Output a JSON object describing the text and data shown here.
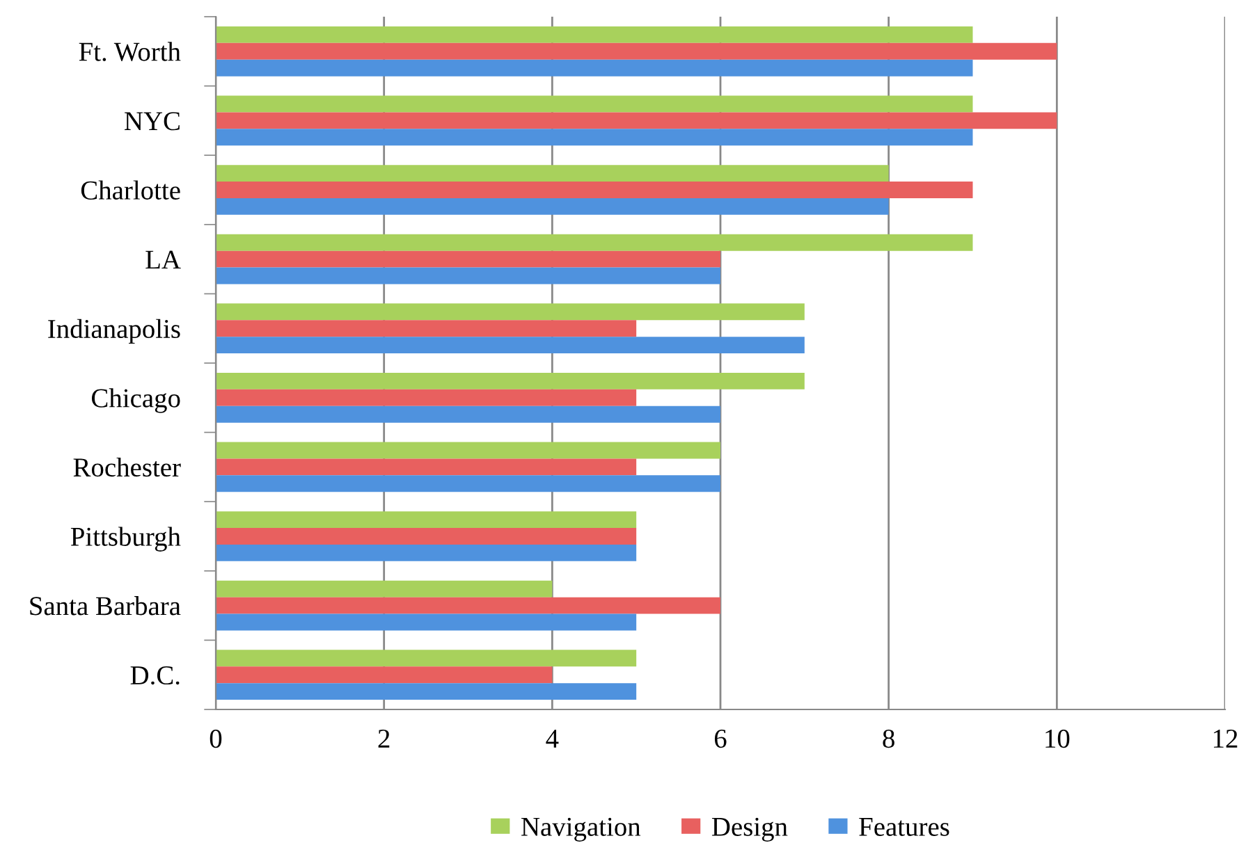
{
  "chart_data": {
    "type": "bar",
    "orientation": "horizontal",
    "categories": [
      "Ft. Worth",
      "NYC",
      "Charlotte",
      "LA",
      "Indianapolis",
      "Chicago",
      "Rochester",
      "Pittsburgh",
      "Santa Barbara",
      "D.C."
    ],
    "series": [
      {
        "name": "Navigation",
        "color": "#a8d15c",
        "values": [
          9,
          9,
          8,
          9,
          7,
          7,
          6,
          5,
          4,
          5
        ]
      },
      {
        "name": "Design",
        "color": "#e8605f",
        "values": [
          10,
          10,
          9,
          6,
          5,
          5,
          5,
          5,
          6,
          4
        ]
      },
      {
        "name": "Features",
        "color": "#4f92de",
        "values": [
          9,
          9,
          8,
          6,
          7,
          6,
          6,
          5,
          5,
          5
        ]
      }
    ],
    "xlim": [
      0,
      12
    ],
    "xticks": [
      0,
      2,
      4,
      6,
      8,
      10,
      12
    ],
    "grid": "x",
    "legend": "bottom"
  }
}
